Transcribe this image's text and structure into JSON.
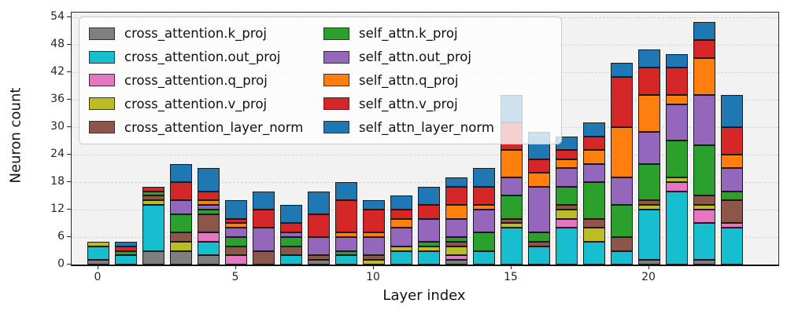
{
  "chart_data": {
    "type": "bar",
    "stacked": true,
    "title": "",
    "xlabel": "Layer index",
    "ylabel": "Neuron count",
    "categories": [
      0,
      1,
      2,
      3,
      4,
      5,
      6,
      7,
      8,
      9,
      10,
      11,
      12,
      13,
      14,
      15,
      16,
      17,
      18,
      19,
      20,
      21,
      22,
      23
    ],
    "x_tick_positions": [
      0,
      5,
      10,
      15,
      20
    ],
    "x_tick_labels": [
      "0",
      "5",
      "10",
      "15",
      "20"
    ],
    "y_ticks": [
      0,
      6,
      12,
      18,
      24,
      30,
      36,
      42,
      48,
      54
    ],
    "ylim": [
      0,
      55
    ],
    "grid": "horizontal-dashed",
    "legend_position": "upper-left",
    "legend_columns": 2,
    "colors": {
      "plot_background": "#f2f2f3",
      "grid": "#d4d4d6",
      "bar_edge": "#1a1a1a",
      "axis": "#262626"
    },
    "series": [
      {
        "name": "cross_attention.k_proj",
        "color": "#7f7f7f",
        "values": [
          1,
          0,
          3,
          3,
          2,
          0,
          0,
          0,
          1,
          0,
          0,
          0,
          0,
          1,
          0,
          0,
          0,
          0,
          0,
          0,
          1,
          0,
          1,
          0
        ]
      },
      {
        "name": "cross_attention.out_proj",
        "color": "#17becf",
        "values": [
          3,
          2,
          10,
          0,
          3,
          0,
          0,
          2,
          0,
          2,
          0,
          3,
          3,
          0,
          3,
          8,
          4,
          8,
          5,
          3,
          11,
          16,
          8,
          8
        ]
      },
      {
        "name": "cross_attention.q_proj",
        "color": "#e377c2",
        "values": [
          0,
          0,
          0,
          0,
          2,
          2,
          0,
          0,
          0,
          0,
          0,
          0,
          0,
          1,
          0,
          0,
          0,
          2,
          0,
          0,
          0,
          2,
          3,
          1
        ]
      },
      {
        "name": "cross_attention.v_proj",
        "color": "#bcbd22",
        "values": [
          1,
          0,
          1,
          2,
          0,
          0,
          0,
          0,
          0,
          0,
          1,
          1,
          1,
          2,
          0,
          1,
          0,
          2,
          3,
          0,
          1,
          1,
          1,
          0
        ]
      },
      {
        "name": "cross_attention_layer_norm",
        "color": "#8c564b",
        "values": [
          0,
          0,
          1,
          2,
          4,
          2,
          3,
          2,
          1,
          0,
          1,
          0,
          0,
          1,
          0,
          1,
          1,
          1,
          2,
          3,
          1,
          0,
          2,
          5
        ]
      },
      {
        "name": "self_attn.k_proj",
        "color": "#2ca02c",
        "values": [
          0,
          1,
          1,
          4,
          1,
          2,
          0,
          2,
          0,
          1,
          0,
          0,
          1,
          1,
          4,
          5,
          2,
          4,
          8,
          7,
          8,
          8,
          11,
          2
        ]
      },
      {
        "name": "self_attn.out_proj",
        "color": "#9467bd",
        "values": [
          0,
          0,
          0,
          3,
          1,
          2,
          5,
          1,
          4,
          3,
          4,
          4,
          5,
          4,
          5,
          4,
          10,
          4,
          4,
          6,
          7,
          8,
          11,
          5
        ]
      },
      {
        "name": "self_attn.q_proj",
        "color": "#ff7f0e",
        "values": [
          0,
          0,
          0,
          0,
          1,
          1,
          0,
          0,
          0,
          1,
          1,
          2,
          0,
          3,
          1,
          6,
          3,
          2,
          3,
          11,
          8,
          2,
          8,
          3
        ]
      },
      {
        "name": "self_attn.v_proj",
        "color": "#d62728",
        "values": [
          0,
          1,
          1,
          4,
          2,
          1,
          4,
          2,
          5,
          7,
          5,
          2,
          3,
          4,
          4,
          6,
          3,
          2,
          3,
          11,
          6,
          6,
          4,
          6
        ]
      },
      {
        "name": "self_attn_layer_norm",
        "color": "#1f77b4",
        "values": [
          0,
          1,
          0,
          4,
          5,
          4,
          4,
          4,
          5,
          4,
          2,
          3,
          4,
          2,
          4,
          6,
          6,
          3,
          3,
          3,
          4,
          3,
          4,
          7
        ]
      }
    ]
  }
}
